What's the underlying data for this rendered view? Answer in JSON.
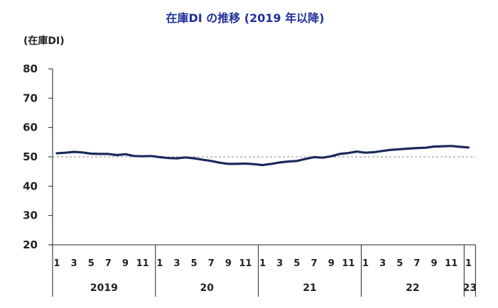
{
  "chart_data": {
    "type": "line",
    "title": "在庫DI の推移 (2019 年以降)",
    "unit_label": "(在庫DI)",
    "ylim": [
      20,
      80
    ],
    "yticks": [
      20,
      30,
      40,
      50,
      60,
      70,
      80
    ],
    "reference_line": 50,
    "month_tick_labels": [
      "1",
      "3",
      "5",
      "7",
      "9",
      "11"
    ],
    "years": [
      {
        "label": "2019",
        "months": 12
      },
      {
        "label": "20",
        "months": 12
      },
      {
        "label": "21",
        "months": 12
      },
      {
        "label": "22",
        "months": 12
      },
      {
        "label": "23",
        "months": 1
      }
    ],
    "grid": false,
    "colors": {
      "title": "#1f2f9a",
      "line": "#1a2a5c",
      "reference": "#888888"
    },
    "series": [
      {
        "values": [
          51.2,
          51.4,
          51.7,
          51.5,
          51.1,
          51.0,
          51.0,
          50.6,
          50.9,
          50.3,
          50.2,
          50.3,
          49.9,
          49.6,
          49.5,
          49.8,
          49.5,
          49.0,
          48.6,
          48.0,
          47.6,
          47.6,
          47.7,
          47.5,
          47.2,
          47.6,
          48.1,
          48.4,
          48.6,
          49.3,
          49.9,
          49.7,
          50.2,
          51.0,
          51.3,
          51.8,
          51.4,
          51.6,
          52.0,
          52.4,
          52.6,
          52.8,
          53.0,
          53.1,
          53.5,
          53.6,
          53.7,
          53.4,
          53.2
        ]
      }
    ]
  }
}
